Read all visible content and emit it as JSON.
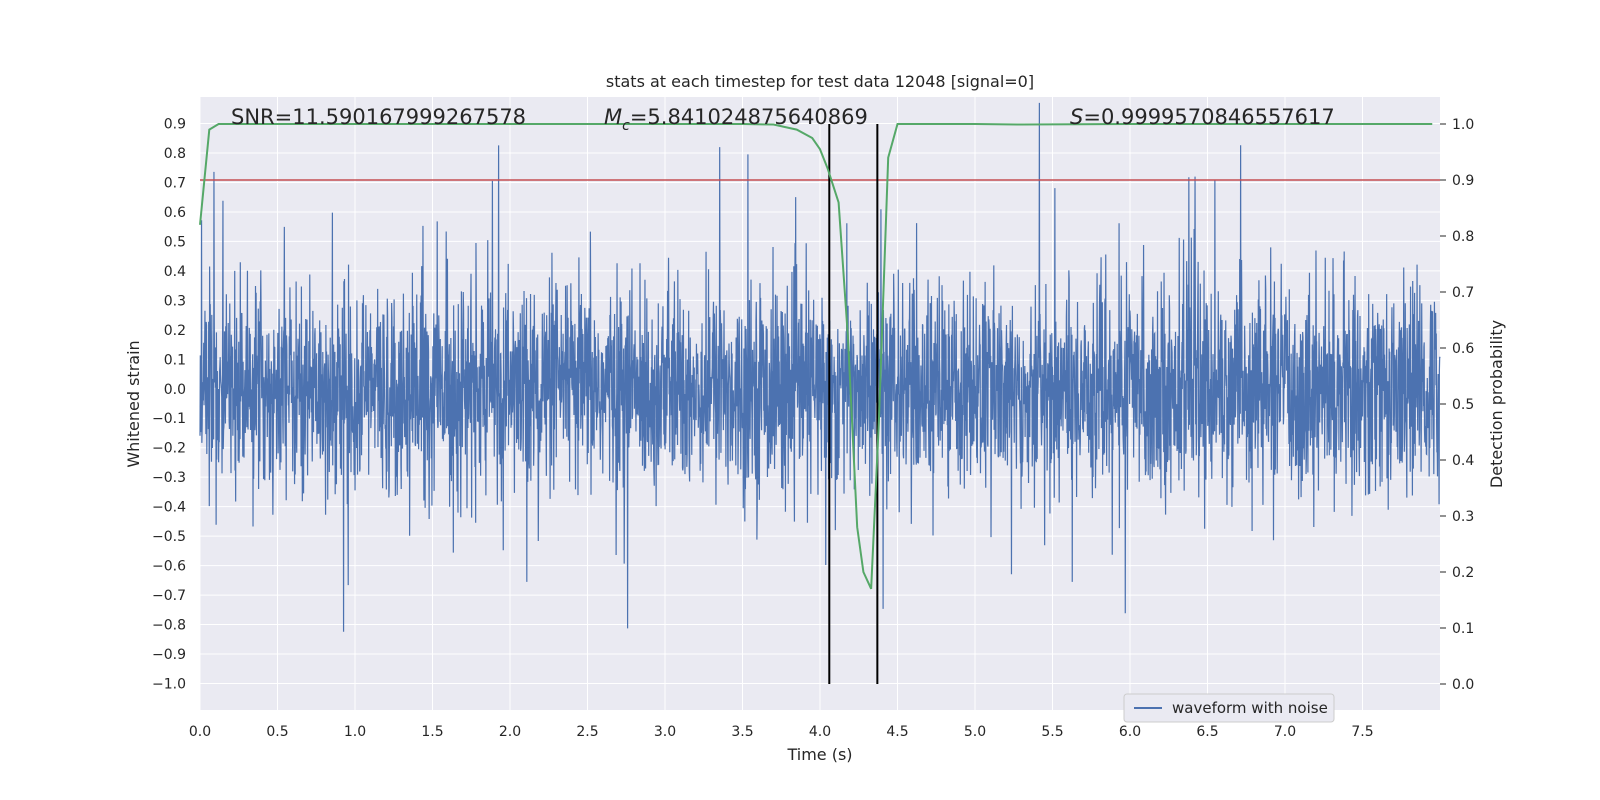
{
  "chart_data": {
    "type": "line",
    "title": "stats at each timestep for test data 12048 [signal=0]",
    "xlabel": "Time (s)",
    "ylabel_left": "Whitened strain",
    "ylabel_right": "Detection probability",
    "xlim": [
      0.0,
      8.0
    ],
    "ylim_left": [
      -1.09,
      0.99
    ],
    "ylim_right": [
      0.0,
      1.0
    ],
    "xticks": [
      "0.0",
      "0.5",
      "1.0",
      "1.5",
      "2.0",
      "2.5",
      "3.0",
      "3.5",
      "4.0",
      "4.5",
      "5.0",
      "5.5",
      "6.0",
      "6.5",
      "7.0",
      "7.5"
    ],
    "yticks_left": [
      "−1.0",
      "−0.9",
      "−0.8",
      "−0.7",
      "−0.6",
      "−0.5",
      "−0.4",
      "−0.3",
      "−0.2",
      "−0.1",
      "0.0",
      "0.1",
      "0.2",
      "0.3",
      "0.4",
      "0.5",
      "0.6",
      "0.7",
      "0.8",
      "0.9"
    ],
    "yticks_right": [
      "0.0",
      "0.1",
      "0.2",
      "0.3",
      "0.4",
      "0.5",
      "0.6",
      "0.7",
      "0.8",
      "0.9",
      "1.0"
    ],
    "threshold": 0.9,
    "event_window": [
      4.06,
      4.37
    ],
    "detection_probability": {
      "x": [
        0.0,
        0.06,
        0.12,
        0.5,
        1.0,
        1.5,
        2.0,
        2.5,
        3.0,
        3.5,
        3.7,
        3.85,
        3.95,
        4.0,
        4.05,
        4.12,
        4.18,
        4.24,
        4.28,
        4.33,
        4.38,
        4.44,
        4.5,
        4.6,
        5.0,
        5.3,
        6.0,
        7.0,
        7.5,
        7.95
      ],
      "y": [
        0.82,
        0.99,
        1.0,
        1.0,
        1.0,
        1.0,
        1.0,
        1.0,
        1.0,
        1.0,
        0.999,
        0.99,
        0.975,
        0.955,
        0.92,
        0.86,
        0.62,
        0.28,
        0.2,
        0.17,
        0.47,
        0.94,
        1.0,
        1.0,
        1.0,
        0.999,
        1.0,
        1.0,
        1.0,
        1.0
      ]
    },
    "annotations": {
      "snr": "SNR=11.590167999267578",
      "mc_sub": "c",
      "mc_value": "=5.841024875640869",
      "s_value": "=0.9999570846557617"
    },
    "legend": [
      "waveform with noise"
    ],
    "series_names": [
      "waveform with noise",
      "detection probability",
      "threshold",
      "event window"
    ],
    "colors": {
      "waveform": "#4c72b0",
      "probability": "#55a868",
      "threshold": "#c44e52",
      "window": "#000000",
      "plot_bg": "#eaeaf2",
      "grid": "#ffffff"
    }
  }
}
